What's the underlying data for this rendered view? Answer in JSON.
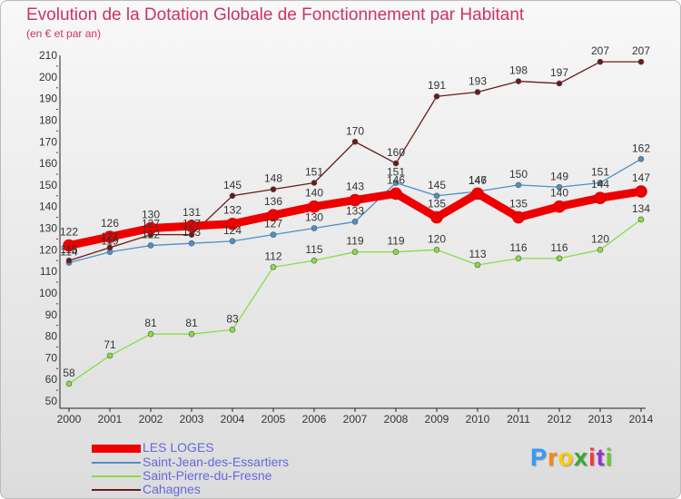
{
  "chart_data": {
    "type": "line",
    "title": "Evolution de la Dotation Globale de Fonctionnement par Habitant",
    "subtitle": "(en € et par an)",
    "x": [
      "2000",
      "2001",
      "2002",
      "2003",
      "2004",
      "2005",
      "2006",
      "2007",
      "2008",
      "2009",
      "2010",
      "2011",
      "2012",
      "2013",
      "2014"
    ],
    "ylim": [
      50,
      210
    ],
    "yticks": [
      50,
      60,
      70,
      80,
      90,
      100,
      110,
      120,
      130,
      140,
      150,
      160,
      170,
      180,
      190,
      200,
      210
    ],
    "grid": false,
    "legend_position": "bottom-left",
    "series": [
      {
        "name": "LES LOGES",
        "color": "#ee0000",
        "values": [
          122,
          126,
          130,
          131,
          132,
          136,
          140,
          143,
          146,
          135,
          146,
          135,
          140,
          144,
          147
        ]
      },
      {
        "name": "Saint-Jean-des-Essartiers",
        "color": "#4d90c8",
        "values": [
          114,
          119,
          122,
          123,
          124,
          127,
          130,
          133,
          151,
          145,
          147,
          150,
          149,
          151,
          162
        ]
      },
      {
        "name": "Saint-Pierre-du-Fresne",
        "color": "#88dd44",
        "values": [
          58,
          71,
          81,
          81,
          83,
          112,
          115,
          119,
          119,
          120,
          113,
          116,
          116,
          120,
          134
        ]
      },
      {
        "name": "Cahagnes",
        "color": "#6b1a1a",
        "values": [
          115,
          121,
          127,
          127,
          145,
          148,
          151,
          170,
          160,
          191,
          193,
          198,
          197,
          207,
          207
        ]
      }
    ]
  },
  "logo": {
    "letters": [
      "P",
      "r",
      "o",
      "x",
      "i",
      "t",
      "i"
    ],
    "colors": [
      "#3399ff",
      "#ff8800",
      "#ffcc00",
      "#33aa33",
      "#ff3333",
      "#9933cc",
      "#66cc33"
    ]
  }
}
